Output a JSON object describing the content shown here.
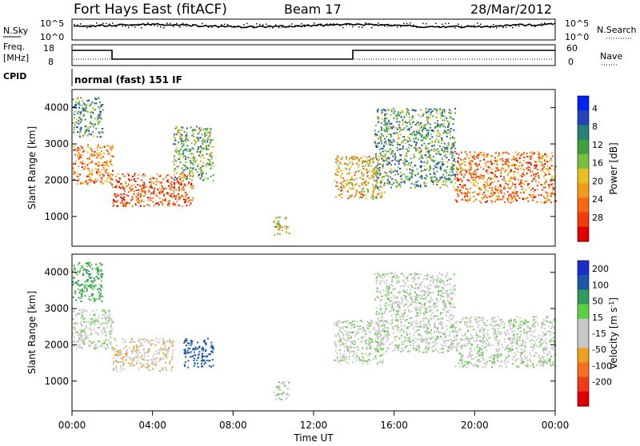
{
  "header": {
    "title": "Fort Hays East (fitACF)",
    "beam": "Beam 17",
    "date": "28/Mar/2012"
  },
  "noise_panel": {
    "left_label": "N.Sky",
    "right_label": "N.Search",
    "left_ticks": [
      "10^5",
      "10^0"
    ],
    "right_ticks": [
      "10^5",
      "10^0"
    ]
  },
  "freq_panel": {
    "left_label_line1": "Freq.",
    "left_label_line2": "[MHz]",
    "right_label": "Nave",
    "left_ticks": [
      "18",
      "8"
    ],
    "right_ticks": [
      "60",
      "0"
    ]
  },
  "cpid_panel": {
    "label": "CPID",
    "text": "normal (fast) 151 IF"
  },
  "x_axis": {
    "label": "Time UT",
    "ticks": [
      "00:00",
      "04:00",
      "08:00",
      "12:00",
      "16:00",
      "20:00",
      "00:00"
    ]
  },
  "chart_data": [
    {
      "type": "heatmap",
      "name": "power",
      "x": "Time UT (hours)",
      "xlim": [
        0,
        24
      ],
      "ylabel": "Slant Range [km]",
      "ylim": [
        180,
        4500
      ],
      "yticks": [
        1000,
        2000,
        3000,
        4000
      ],
      "colorbar": {
        "label": "Power [dB]",
        "ticks": [
          "4",
          "8",
          "12",
          "16",
          "20",
          "24",
          "28"
        ],
        "colors": [
          "#0022ee",
          "#2244bb",
          "#2a8078",
          "#3fa040",
          "#77c040",
          "#e6c020",
          "#f39a1a",
          "#f56a10",
          "#f23a0a",
          "#e00000"
        ]
      },
      "regions": [
        {
          "t0": 0.0,
          "t1": 2.0,
          "r0": 1900,
          "r1": 3000,
          "value": 22
        },
        {
          "t0": 2.0,
          "t1": 6.0,
          "r0": 1300,
          "r1": 2200,
          "value": 24
        },
        {
          "t0": 0.0,
          "t1": 1.5,
          "r0": 3200,
          "r1": 4300,
          "value": 10
        },
        {
          "t0": 5.0,
          "t1": 7.0,
          "r0": 2000,
          "r1": 3500,
          "value": 12
        },
        {
          "t0": 13.0,
          "t1": 15.5,
          "r0": 1500,
          "r1": 2700,
          "value": 18
        },
        {
          "t0": 15.0,
          "t1": 19.0,
          "r0": 1800,
          "r1": 4000,
          "value": 10
        },
        {
          "t0": 19.0,
          "t1": 24.0,
          "r0": 1400,
          "r1": 2800,
          "value": 22
        },
        {
          "t0": 10.0,
          "t1": 10.8,
          "r0": 500,
          "r1": 1000,
          "value": 16
        }
      ]
    },
    {
      "type": "heatmap",
      "name": "velocity",
      "x": "Time UT (hours)",
      "xlim": [
        0,
        24
      ],
      "ylabel": "Slant Range [km]",
      "ylim": [
        180,
        4500
      ],
      "yticks": [
        1000,
        2000,
        3000,
        4000
      ],
      "colorbar": {
        "label": "Velocity [m s^-1]",
        "ticks": [
          "200",
          "100",
          "50",
          "15",
          "-15",
          "-50",
          "-100",
          "-200"
        ],
        "colors": [
          "#1a2ecc",
          "#1c58a8",
          "#2f9a5a",
          "#5cd040",
          "#c8c8c8",
          "#c8c8c8",
          "#f0a020",
          "#f47020",
          "#f03a18",
          "#e00000"
        ]
      },
      "regions": [
        {
          "t0": 0.0,
          "t1": 2.0,
          "r0": 1900,
          "r1": 3000,
          "value": 0
        },
        {
          "t0": 2.0,
          "t1": 5.0,
          "r0": 1300,
          "r1": 2200,
          "value": -40
        },
        {
          "t0": 0.0,
          "t1": 1.5,
          "r0": 3200,
          "r1": 4300,
          "value": 60
        },
        {
          "t0": 5.5,
          "t1": 7.0,
          "r0": 1400,
          "r1": 2200,
          "value": 150
        },
        {
          "t0": 13.0,
          "t1": 15.5,
          "r0": 1500,
          "r1": 2700,
          "value": 0
        },
        {
          "t0": 15.0,
          "t1": 19.0,
          "r0": 1800,
          "r1": 4000,
          "value": 0
        },
        {
          "t0": 19.0,
          "t1": 24.0,
          "r0": 1400,
          "r1": 2800,
          "value": 0
        },
        {
          "t0": 10.0,
          "t1": 10.8,
          "r0": 500,
          "r1": 1000,
          "value": 0
        }
      ]
    }
  ]
}
